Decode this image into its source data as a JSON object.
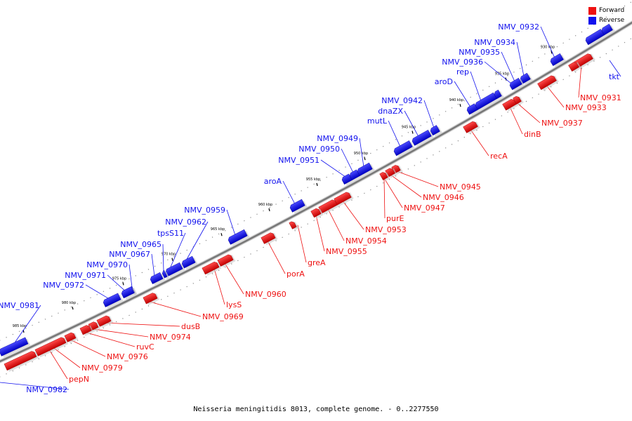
{
  "caption": "Neisseria meningitidis 8013, complete genome. - 0..2277550",
  "legend": [
    {
      "label": "Forward",
      "color": "#ee1111"
    },
    {
      "label": "Reverse",
      "color": "#1111ee"
    }
  ],
  "colors": {
    "forward": "#ee1111",
    "reverse": "#1111ee",
    "backbone": "#777777"
  },
  "ticks": [
    "930 kbp",
    "935 kbp",
    "940 kbp",
    "945 kbp",
    "950 kbp",
    "955 kbp",
    "960 kbp",
    "965 kbp",
    "970 kbp",
    "975 kbp",
    "980 kbp",
    "985 kbp"
  ],
  "reverse_labels": [
    "NMV_0932",
    "NMV_0934",
    "NMV_0935",
    "NMV_0936",
    "rep",
    "aroD",
    "NMV_0942",
    "dnaZX",
    "mutL",
    "NMV_0949",
    "NMV_0950",
    "NMV_0951",
    "aroA",
    "NMV_0959",
    "NMV_0962",
    "tpsS11",
    "NMV_0965",
    "NMV_0967",
    "NMV_0970",
    "NMV_0971",
    "NMV_0972",
    "NMV_0981",
    "NMV_0982",
    "tkt"
  ],
  "forward_labels": [
    "NMV_0931",
    "NMV_0933",
    "NMV_0937",
    "dinB",
    "recA",
    "NMV_0945",
    "NMV_0946",
    "NMV_0947",
    "purE",
    "NMV_0953",
    "NMV_0954",
    "NMV_0955",
    "greA",
    "porA",
    "NMV_0960",
    "lysS",
    "NMV_0969",
    "dusB",
    "NMV_0974",
    "ruvC",
    "NMV_0976",
    "NMV_0979",
    "pepN"
  ]
}
